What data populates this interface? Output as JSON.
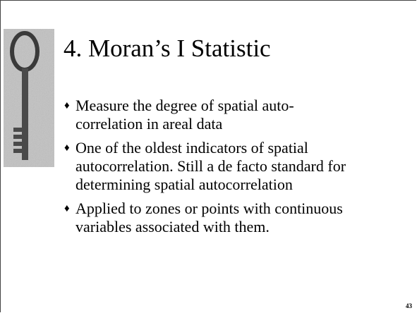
{
  "slide": {
    "title": "4. Moran’s I Statistic",
    "bullets": [
      [
        "Measure the degree of spatial auto-",
        "correlation in areal data"
      ],
      [
        "One of the oldest indicators of spatial",
        "autocorrelation.  Still a de facto standard for",
        "determining spatial autocorrelation"
      ],
      [
        "Applied to zones or points with continuous",
        "variables associated with them."
      ]
    ],
    "page_number": "43"
  }
}
